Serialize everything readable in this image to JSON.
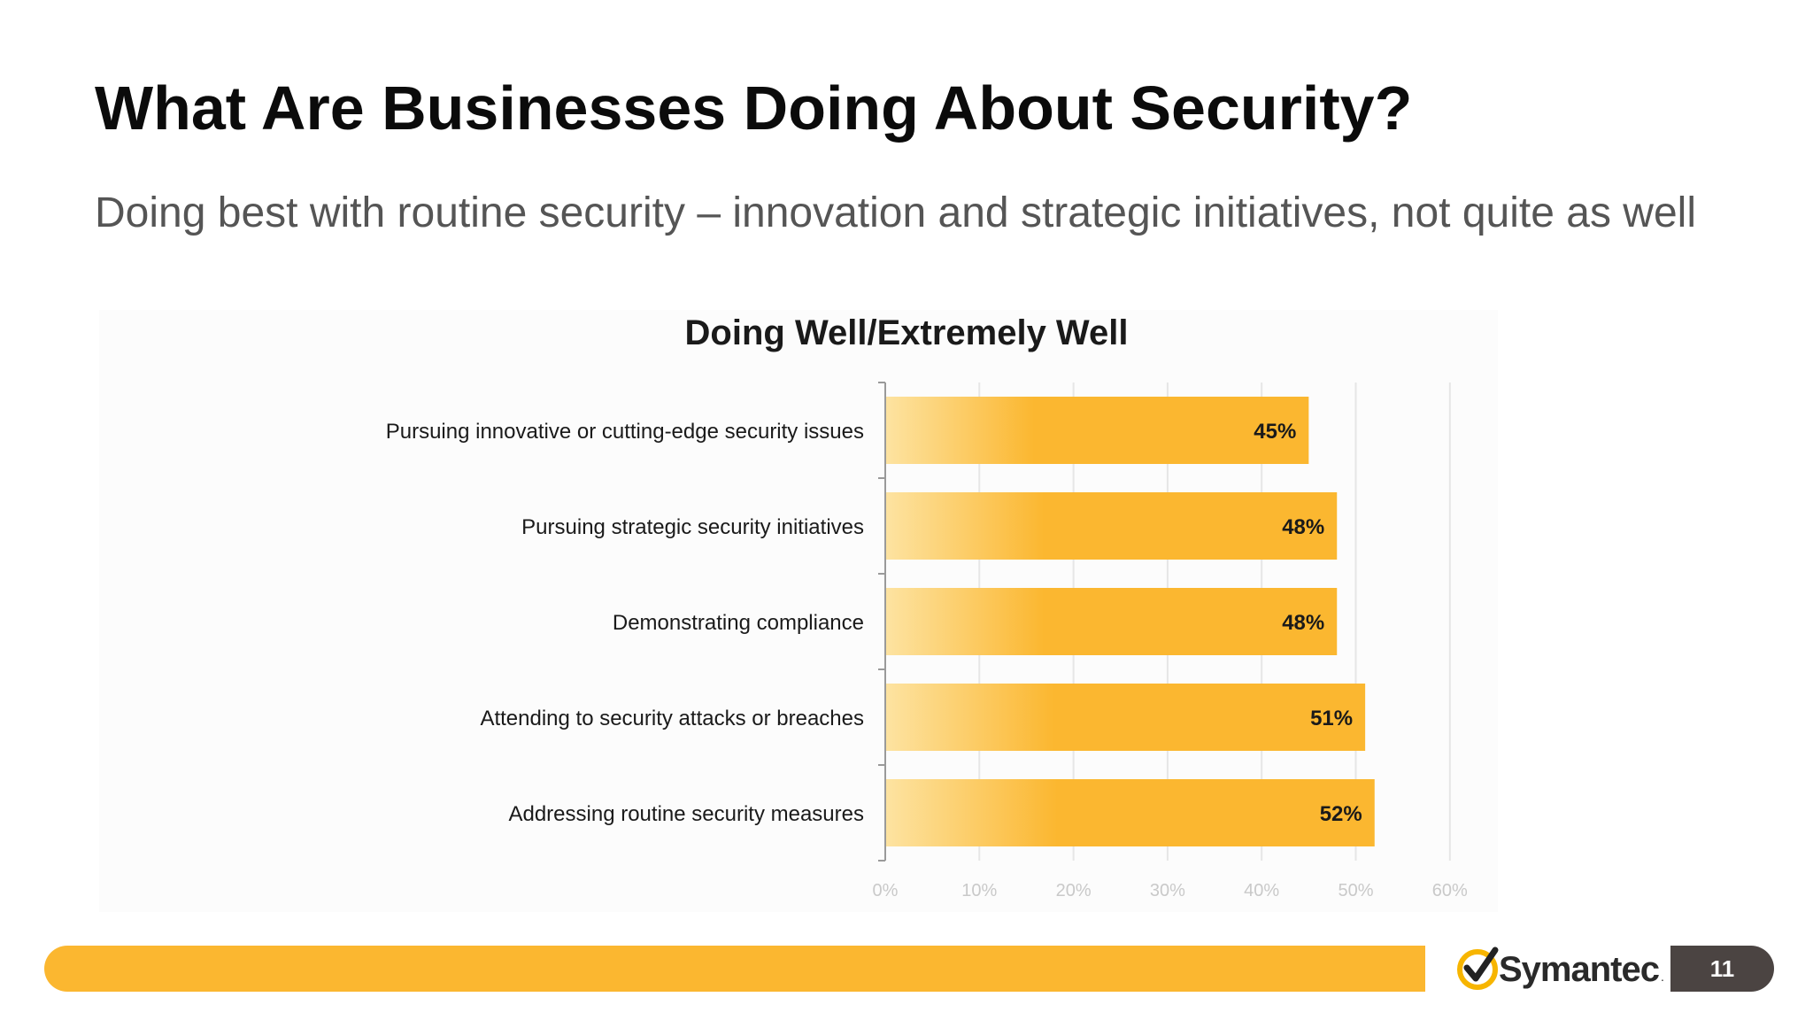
{
  "slide": {
    "title": "What Are Businesses Doing About Security?",
    "subtitle": "Doing best with routine security – innovation and strategic initiatives, not quite as well",
    "page_number": "11",
    "brand": "Symantec",
    "colors": {
      "accent": "#fbb730",
      "bar_light": "#fde3a1",
      "bar_dark": "#fbb730",
      "page_box": "#4b4442",
      "logo_check": "#f7b500"
    }
  },
  "chart_data": {
    "type": "bar",
    "orientation": "horizontal",
    "title": "Doing Well/Extremely Well",
    "categories": [
      "Pursuing innovative or cutting-edge security issues",
      "Pursuing strategic security initiatives",
      "Demonstrating compliance",
      "Attending to security attacks or breaches",
      "Addressing routine security measures"
    ],
    "values": [
      45,
      48,
      48,
      51,
      52
    ],
    "data_labels": [
      "45%",
      "48%",
      "48%",
      "51%",
      "52%"
    ],
    "xlim": [
      0,
      60
    ],
    "xticks": [
      0,
      10,
      20,
      30,
      40,
      50,
      60
    ],
    "xtick_labels": [
      "0%",
      "10%",
      "20%",
      "30%",
      "40%",
      "50%",
      "60%"
    ],
    "grid": true,
    "legend": "none"
  }
}
